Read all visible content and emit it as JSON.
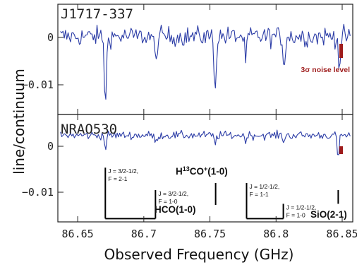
{
  "colors": {
    "spectrum": "#2b3ca6",
    "noise": "#9e1b1b",
    "axis": "#222222"
  },
  "chart_data": {
    "type": "line",
    "xlabel": "Observed Frequency (GHz)",
    "ylabel": "line/continuum",
    "xlim": [
      86.635,
      86.858
    ],
    "x_ticks": [
      86.65,
      86.7,
      86.75,
      86.8,
      86.85
    ],
    "x_tick_labels": [
      "86.65",
      "86.7",
      "86.75",
      "86.8",
      "86.85"
    ],
    "panels": [
      {
        "source": "J1717-337",
        "ylim": [
          -0.0165,
          0.0068
        ],
        "y_ticks": [
          0,
          -0.01
        ],
        "y_tick_labels": [
          "0",
          "−0.01"
        ],
        "noise_rms_level": 0.0045,
        "noise_label": "3σ noise level",
        "absorption_lines": [
          {
            "x": 86.671,
            "depth": -0.0148
          },
          {
            "x": 86.709,
            "depth": -0.0062
          },
          {
            "x": 86.754,
            "depth": -0.0114
          },
          {
            "x": 86.777,
            "depth": -0.0052
          },
          {
            "x": 86.806,
            "depth": -0.0065
          },
          {
            "x": 86.848,
            "depth": -0.0065
          }
        ]
      },
      {
        "source": "NRAO530",
        "ylim": [
          -0.0158,
          0.0038
        ],
        "y_ticks": [
          0,
          -0.01
        ],
        "y_tick_labels": [
          "0",
          "−0.01"
        ],
        "noise_rms_level": 0.0016,
        "absorption_lines": [
          {
            "x": 86.671,
            "depth": -0.0022
          },
          {
            "x": 86.709,
            "depth": -0.0015
          },
          {
            "x": 86.754,
            "depth": -0.0015
          },
          {
            "x": 86.777,
            "depth": -0.0008
          },
          {
            "x": 86.806,
            "depth": -0.001
          },
          {
            "x": 86.847,
            "depth": -0.004
          }
        ]
      }
    ],
    "line_markers": [
      {
        "x": 86.6709,
        "y_top": -0.0059,
        "y_bottom": -0.0152,
        "label": [
          "J = 3/2-1/2,",
          "F = 2-1"
        ]
      },
      {
        "x": 86.7088,
        "y_top": -0.01,
        "y_bottom": -0.0152,
        "label": [
          "J = 3/2-1/2,",
          "F = 1-0"
        ]
      },
      {
        "x": 86.7543,
        "y_top": -0.0087,
        "y_bottom": -0.0127,
        "label": []
      },
      {
        "x": 86.7777,
        "y_top": -0.0087,
        "y_bottom": -0.0152,
        "label": [
          "J = 1/2-1/2,",
          "F = 1-1"
        ]
      },
      {
        "x": 86.8055,
        "y_top": -0.0125,
        "y_bottom": -0.0152,
        "label": [
          "J = 1/2-1/2,",
          "F = 1-0"
        ]
      },
      {
        "x": 86.847,
        "y_top": -0.01,
        "y_bottom": -0.0125,
        "label": []
      }
    ],
    "molecule_labels": [
      {
        "text": "HCO(1-0)"
      },
      {
        "text": "SiO(2-1)"
      },
      {
        "text": "H13CO+(1-0)",
        "base": "H",
        "sup1": "13",
        "mid": "CO",
        "sup2": "+",
        "tail": "(1-0)"
      }
    ]
  }
}
